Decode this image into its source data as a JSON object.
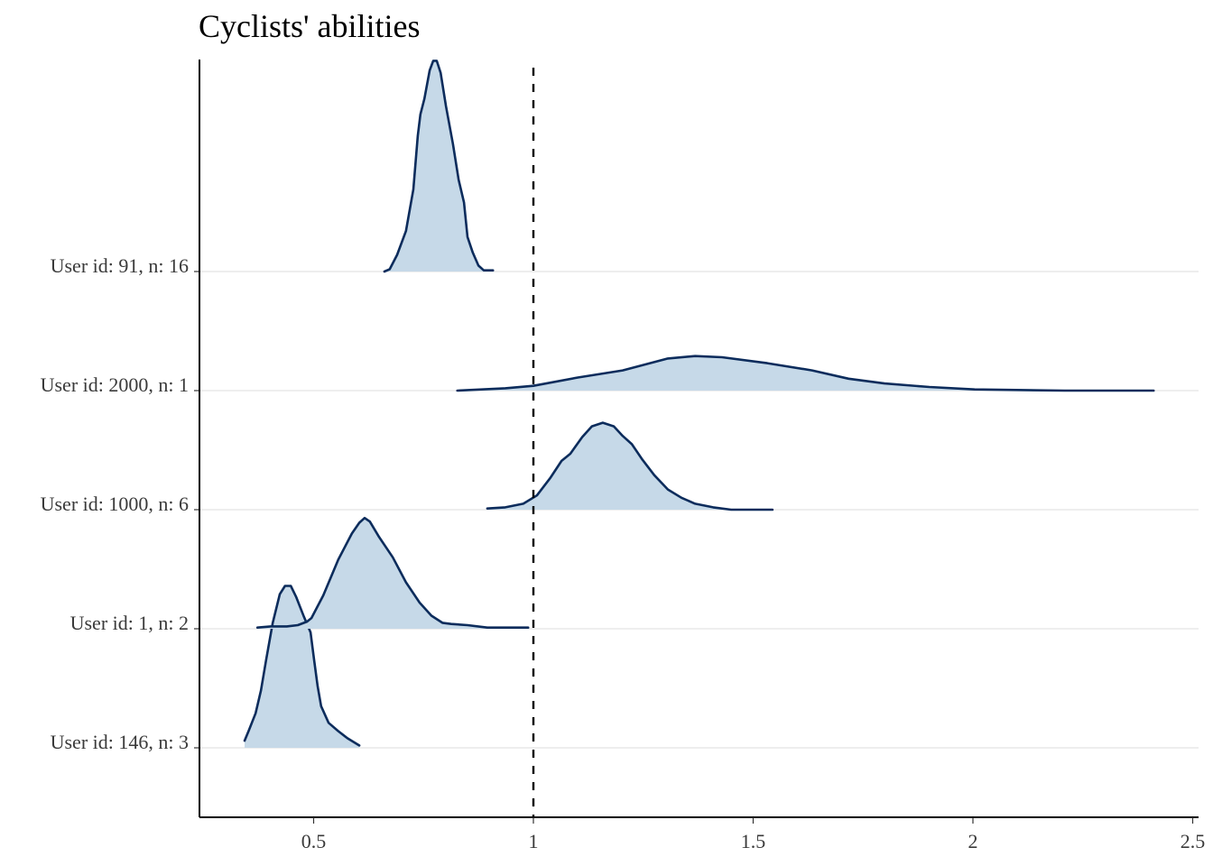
{
  "chart_data": {
    "type": "ridgeline",
    "title": "Cyclists' abilities",
    "xlabel": "",
    "ylabel": "",
    "xlim": [
      0.24,
      2.52
    ],
    "x_ticks": [
      0.5,
      1,
      1.5,
      2,
      2.5
    ],
    "x_tick_labels": [
      "0.5",
      "1",
      "1.5",
      "2",
      "2.5"
    ],
    "reference_line": {
      "x": 1,
      "style": "dashed"
    },
    "grid": "horizontal baselines",
    "colors": {
      "fill": "#c6d9e8",
      "line": "#0c2c5c",
      "grid": "#e3e3e3",
      "ref": "#000000"
    },
    "series": [
      {
        "name": "User id: 91, n: 16",
        "x": [
          0.661,
          0.673,
          0.69,
          0.71,
          0.727,
          0.737,
          0.743,
          0.752,
          0.764,
          0.772,
          0.78,
          0.789,
          0.801,
          0.817,
          0.83,
          0.842,
          0.85,
          0.862,
          0.875,
          0.887,
          0.908
        ],
        "density": [
          0,
          0.02,
          0.14,
          0.34,
          0.69,
          1.14,
          1.32,
          1.45,
          1.69,
          1.77,
          1.77,
          1.67,
          1.39,
          1.07,
          0.77,
          0.58,
          0.29,
          0.16,
          0.05,
          0.01,
          0.01
        ]
      },
      {
        "name": "User id: 2000, n: 1",
        "x": [
          0.827,
          0.936,
          1.0,
          1.101,
          1.203,
          1.306,
          1.368,
          1.429,
          1.532,
          1.634,
          1.717,
          1.799,
          1.901,
          2.004,
          2.209,
          2.411
        ],
        "density": [
          0,
          0.02,
          0.04,
          0.11,
          0.17,
          0.27,
          0.29,
          0.28,
          0.23,
          0.17,
          0.1,
          0.06,
          0.03,
          0.01,
          0,
          0
        ]
      },
      {
        "name": "User id: 1000, n: 6",
        "x": [
          0.895,
          0.936,
          0.977,
          1.008,
          1.039,
          1.064,
          1.084,
          1.111,
          1.133,
          1.158,
          1.183,
          1.203,
          1.224,
          1.248,
          1.275,
          1.306,
          1.337,
          1.368,
          1.409,
          1.45,
          1.544
        ],
        "density": [
          0.01,
          0.02,
          0.05,
          0.12,
          0.27,
          0.41,
          0.47,
          0.61,
          0.7,
          0.73,
          0.7,
          0.62,
          0.55,
          0.42,
          0.29,
          0.17,
          0.1,
          0.05,
          0.02,
          0,
          0
        ]
      },
      {
        "name": "User id: 1, n: 2",
        "x": [
          0.372,
          0.402,
          0.439,
          0.464,
          0.485,
          0.495,
          0.522,
          0.556,
          0.587,
          0.604,
          0.616,
          0.628,
          0.649,
          0.68,
          0.71,
          0.741,
          0.768,
          0.793,
          0.813,
          0.85,
          0.895,
          0.936,
          0.988
        ],
        "density": [
          0.01,
          0.02,
          0.02,
          0.03,
          0.06,
          0.09,
          0.28,
          0.58,
          0.8,
          0.89,
          0.93,
          0.9,
          0.77,
          0.6,
          0.39,
          0.22,
          0.11,
          0.05,
          0.04,
          0.03,
          0.01,
          0.01,
          0.01
        ]
      },
      {
        "name": "User id: 146, n: 3",
        "x": [
          0.343,
          0.353,
          0.368,
          0.38,
          0.392,
          0.407,
          0.423,
          0.435,
          0.448,
          0.46,
          0.478,
          0.493,
          0.501,
          0.509,
          0.517,
          0.534,
          0.556,
          0.577,
          0.604
        ],
        "density": [
          0.06,
          0.15,
          0.29,
          0.48,
          0.74,
          1.05,
          1.29,
          1.36,
          1.36,
          1.27,
          1.1,
          0.97,
          0.74,
          0.52,
          0.35,
          0.21,
          0.14,
          0.08,
          0.02
        ]
      }
    ]
  }
}
